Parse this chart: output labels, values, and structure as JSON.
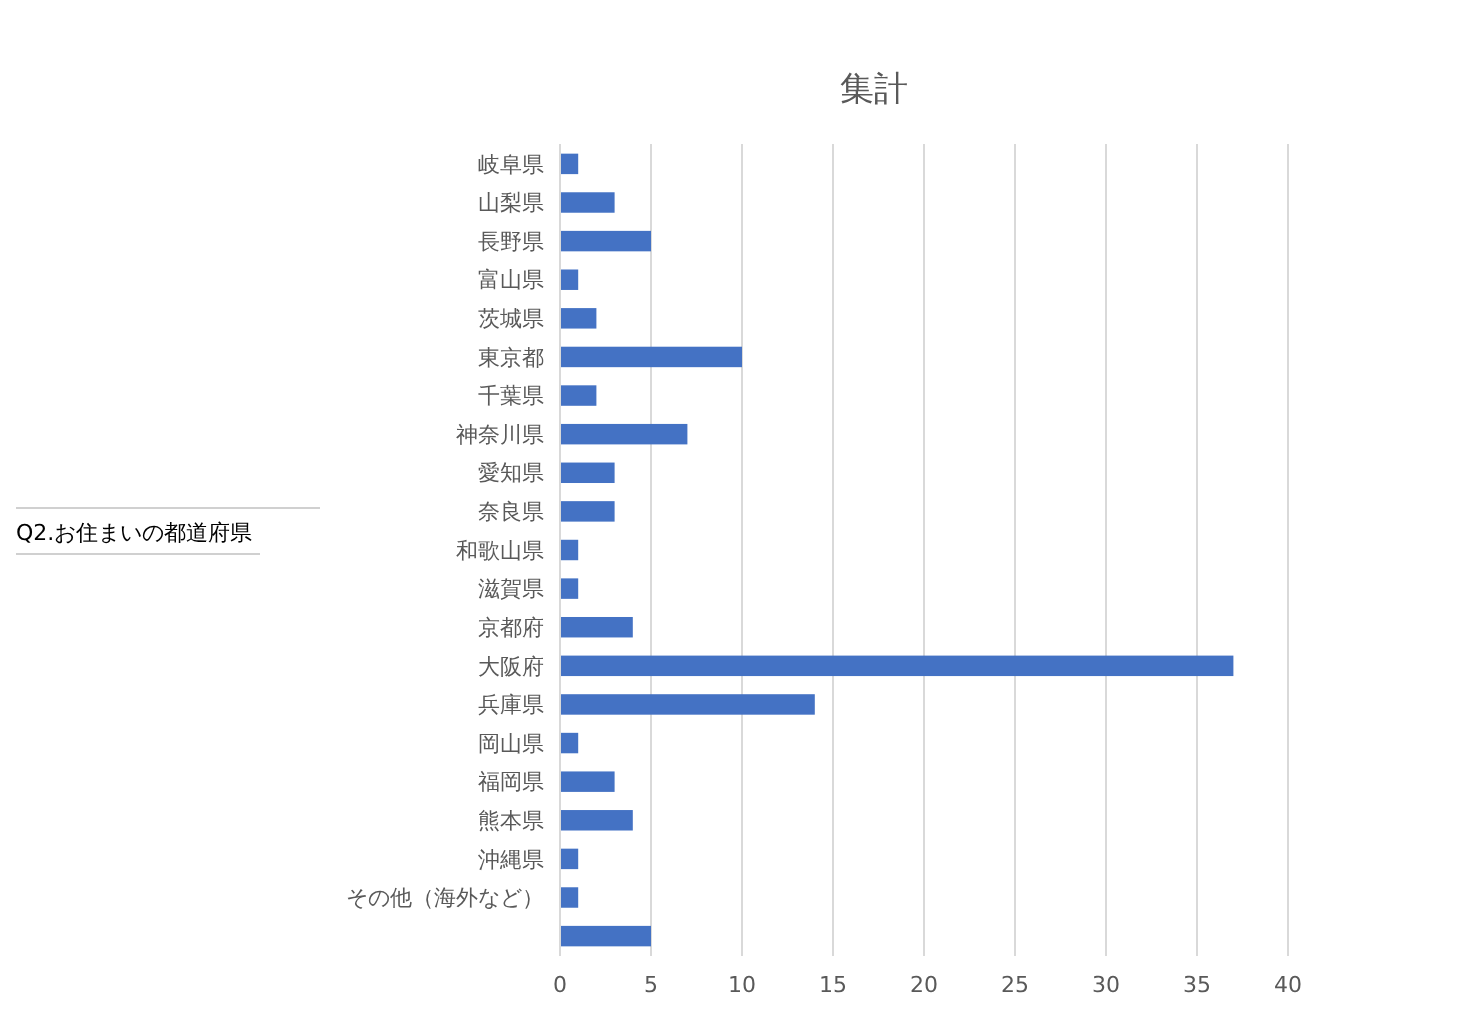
{
  "chart_data": {
    "type": "bar",
    "orientation": "horizontal",
    "title": "集計",
    "ylabel": "Q2.お住まいの都道府県",
    "categories": [
      "岐阜県",
      "山梨県",
      "長野県",
      "富山県",
      "茨城県",
      "東京都",
      "千葉県",
      "神奈川県",
      "愛知県",
      "奈良県",
      "和歌山県",
      "滋賀県",
      "京都府",
      "大阪府",
      "兵庫県",
      "岡山県",
      "福岡県",
      "熊本県",
      "沖縄県",
      "その他（海外など）",
      null
    ],
    "values": [
      1,
      3,
      5,
      1,
      2,
      10,
      2,
      7,
      3,
      3,
      1,
      1,
      4,
      37,
      14,
      1,
      3,
      4,
      1,
      1,
      5
    ],
    "color": "#4472c4",
    "xlim": [
      0,
      40
    ],
    "xticks": [
      0,
      5,
      10,
      15,
      20,
      25,
      30,
      35,
      40
    ],
    "grid": "x"
  }
}
